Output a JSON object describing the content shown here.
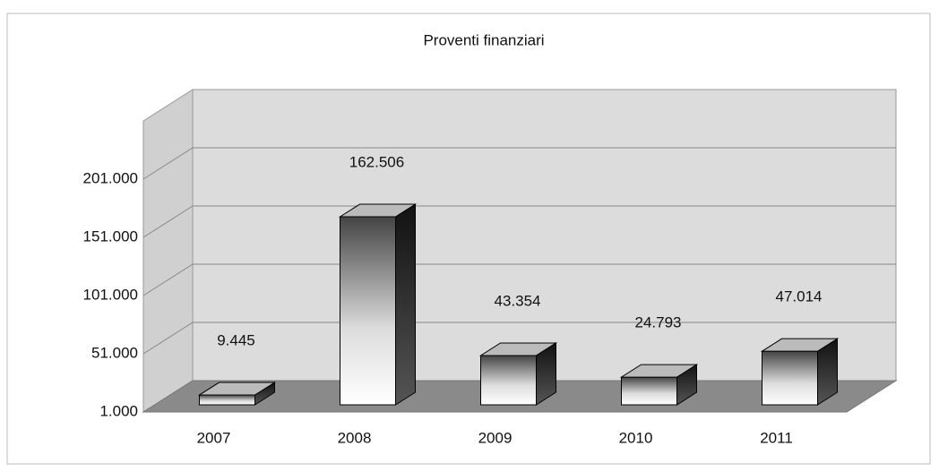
{
  "chart_data": {
    "type": "bar3d",
    "title": "Proventi finanziari",
    "categories": [
      "2007",
      "2008",
      "2009",
      "2010",
      "2011"
    ],
    "values": [
      9445,
      162506,
      43354,
      24793,
      47014
    ],
    "value_labels": [
      "9.445",
      "162.506",
      "43.354",
      "24.793",
      "47.014"
    ],
    "ylim": [
      1000,
      251000
    ],
    "yticks": [
      {
        "value": 1000,
        "label": "1.000"
      },
      {
        "value": 51000,
        "label": "51.000"
      },
      {
        "value": 101000,
        "label": "101.000"
      },
      {
        "value": 151000,
        "label": "151.000"
      },
      {
        "value": 201000,
        "label": "201.000"
      }
    ],
    "grid": true
  }
}
